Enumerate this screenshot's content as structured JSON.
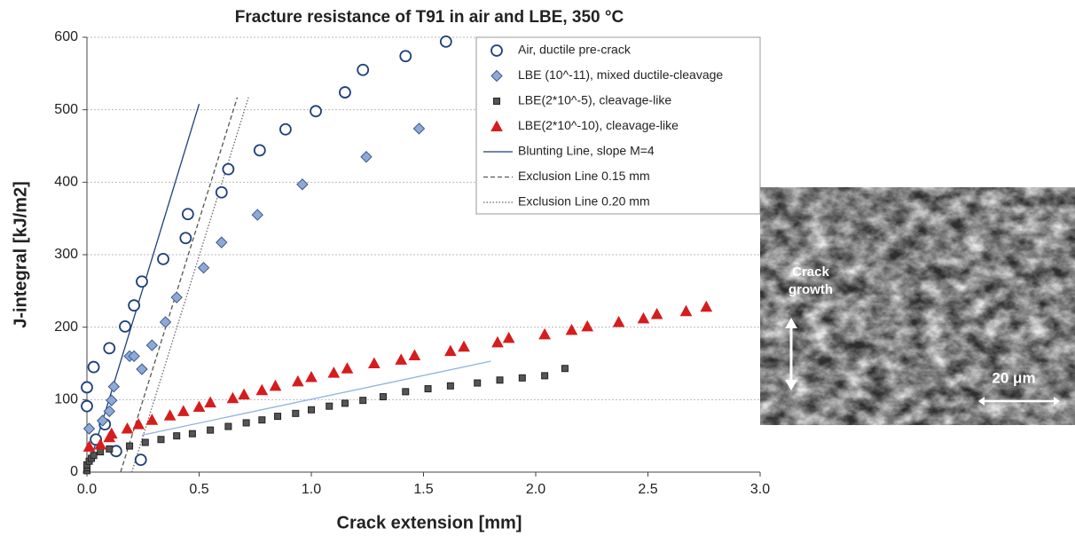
{
  "chart_data": {
    "type": "scatter",
    "title": "Fracture resistance of T91 in air and LBE, 350 °C",
    "x_label": "Crack extension [mm]",
    "y_label": "J-integral [kJ/m2]",
    "xlim": [
      0,
      3.0
    ],
    "xticks": [
      {
        "value": 0,
        "label": "0.0"
      },
      {
        "value": 0.5,
        "label": "0.5"
      },
      {
        "value": 1,
        "label": "1.0"
      },
      {
        "value": 1.5,
        "label": "1.5"
      },
      {
        "value": 2,
        "label": "2.0"
      },
      {
        "value": 2.5,
        "label": "2.5"
      },
      {
        "value": 3,
        "label": "3.0"
      }
    ],
    "ylim": [
      0,
      600
    ],
    "yticks": [
      0,
      100,
      200,
      300,
      400,
      500,
      600
    ],
    "grid": true,
    "legend": "upper right",
    "series": [
      {
        "name": "Air, ductile pre-crack",
        "marker": "circle",
        "color": "#1f3f7a",
        "x": [
          0.0,
          0.0,
          0.03,
          0.04,
          0.08,
          0.1,
          0.13,
          0.17,
          0.21,
          0.245,
          0.24,
          0.34,
          0.45,
          0.44,
          0.6,
          0.63,
          0.77,
          0.885,
          1.02,
          1.15,
          1.23,
          1.42,
          1.6
        ],
        "values": [
          117,
          91,
          145,
          45,
          66,
          171,
          29,
          201,
          230,
          263,
          17,
          294,
          356,
          323,
          386,
          418,
          444,
          473,
          498,
          524,
          555,
          574,
          594
        ]
      },
      {
        "name": "LBE (10^-11), mixed ductile-cleavage",
        "marker": "diamond",
        "color": "#8ea9d6",
        "x": [
          0.01,
          0.07,
          0.1,
          0.11,
          0.12,
          0.19,
          0.21,
          0.245,
          0.29,
          0.35,
          0.4,
          0.52,
          0.6,
          0.76,
          0.96,
          1.245,
          1.48
        ],
        "values": [
          60,
          71,
          84,
          99,
          118,
          160,
          160,
          142,
          175,
          207,
          241,
          282,
          317,
          355,
          397,
          435,
          474
        ]
      },
      {
        "name": "LBE(2*10^-5), cleavage-like",
        "marker": "square",
        "color": "#555555",
        "x": [
          0.0,
          0.0,
          0.0,
          0.01,
          0.02,
          0.03,
          0.06,
          0.1,
          0.19,
          0.26,
          0.33,
          0.4,
          0.47,
          0.55,
          0.63,
          0.71,
          0.78,
          0.85,
          0.93,
          1.0,
          1.08,
          1.15,
          1.23,
          1.32,
          1.42,
          1.52,
          1.62,
          1.74,
          1.84,
          1.94,
          2.04,
          2.13
        ],
        "values": [
          2,
          6,
          10,
          15,
          19,
          23,
          28,
          32,
          36,
          41,
          45,
          50,
          53,
          58,
          63,
          68,
          72,
          77,
          81,
          86,
          91,
          95,
          99,
          104,
          111,
          115,
          119,
          123,
          127,
          130,
          133,
          143
        ]
      },
      {
        "name": "LBE(2*10^-10), cleavage-like",
        "marker": "triangle",
        "color": "#d61d1d",
        "x": [
          0.01,
          0.06,
          0.1,
          0.11,
          0.18,
          0.23,
          0.29,
          0.37,
          0.43,
          0.5,
          0.55,
          0.65,
          0.7,
          0.78,
          0.84,
          0.94,
          1.0,
          1.1,
          1.16,
          1.28,
          1.4,
          1.46,
          1.62,
          1.68,
          1.83,
          1.88,
          2.04,
          2.16,
          2.23,
          2.37,
          2.48,
          2.54,
          2.67,
          2.76
        ],
        "values": [
          35,
          38,
          48,
          53,
          60,
          66,
          72,
          78,
          84,
          90,
          96,
          102,
          107,
          113,
          119,
          125,
          131,
          137,
          143,
          150,
          155,
          161,
          167,
          173,
          179,
          185,
          190,
          196,
          201,
          207,
          212,
          218,
          222,
          228
        ]
      },
      {
        "name": "Blunting Line, slope M=4",
        "line_style": "solid",
        "color": "#1f3f7a",
        "x": [
          0.0,
          0.5
        ],
        "values": [
          0,
          508
        ]
      },
      {
        "name": "Exclusion Line 0.15 mm",
        "line_style": "dashed",
        "color": "#555555",
        "x": [
          0.15,
          0.67
        ],
        "values": [
          0,
          517
        ]
      },
      {
        "name": "Exclusion Line 0.20 mm",
        "line_style": "dotted",
        "color": "#666666",
        "x": [
          0.2,
          0.72
        ],
        "values": [
          0,
          517
        ]
      },
      {
        "line_style": "solid",
        "color": "#8fb4e0",
        "x": [
          0.245,
          1.8
        ],
        "values": [
          51,
          153
        ]
      }
    ]
  },
  "inset": {
    "label_lines": [
      "Crack",
      "growth"
    ],
    "scale_label": "20 μm"
  }
}
